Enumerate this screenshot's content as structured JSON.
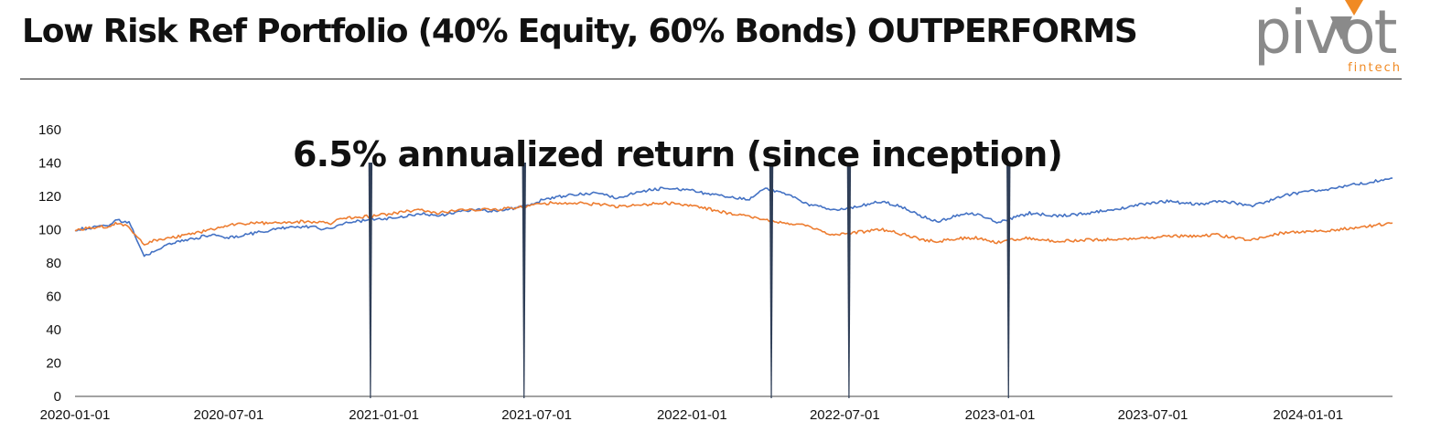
{
  "header": {
    "title": "Low Risk Ref Portfolio (40% Equity, 60% Bonds) OUTPERFORMS",
    "logo_text": "pivot",
    "logo_subtext": "fintech"
  },
  "colors": {
    "blue": "#4472C4",
    "orange": "#ED7D31",
    "marker": "#2F3E57",
    "logo_gray": "#8a8a8a",
    "logo_orange": "#F08A24"
  },
  "chart_data": {
    "type": "line",
    "title": "",
    "annotation": "6.5% annualized return (since inception)",
    "xlabel": "",
    "ylabel": "",
    "ylim": [
      0,
      160
    ],
    "yticks": [
      0,
      20,
      40,
      60,
      80,
      100,
      120,
      140,
      160
    ],
    "x_range": [
      "2020-01-01",
      "2024-04-10"
    ],
    "x_ticks": [
      "2020-01-01",
      "2020-07-01",
      "2021-01-01",
      "2021-07-01",
      "2022-01-01",
      "2022-07-01",
      "2023-01-01",
      "2023-07-01",
      "2024-01-01"
    ],
    "grid": false,
    "legend": "none",
    "event_markers": [
      "2020-12-16",
      "2021-06-16",
      "2022-04-05",
      "2022-07-06",
      "2023-01-11"
    ],
    "series": [
      {
        "color": "#4472C4",
        "points": [
          [
            "2020-01-01",
            100
          ],
          [
            "2020-01-20",
            101
          ],
          [
            "2020-02-10",
            103
          ],
          [
            "2020-02-20",
            106
          ],
          [
            "2020-03-05",
            104
          ],
          [
            "2020-03-12",
            97
          ],
          [
            "2020-03-23",
            84
          ],
          [
            "2020-04-01",
            86
          ],
          [
            "2020-04-20",
            91
          ],
          [
            "2020-05-15",
            94
          ],
          [
            "2020-06-10",
            97
          ],
          [
            "2020-07-01",
            95
          ],
          [
            "2020-08-01",
            98
          ],
          [
            "2020-09-01",
            101
          ],
          [
            "2020-10-01",
            102
          ],
          [
            "2020-10-30",
            100
          ],
          [
            "2020-11-15",
            104
          ],
          [
            "2020-12-16",
            106
          ],
          [
            "2021-01-15",
            107
          ],
          [
            "2021-02-15",
            110
          ],
          [
            "2021-03-05",
            108
          ],
          [
            "2021-03-20",
            110
          ],
          [
            "2021-04-15",
            112
          ],
          [
            "2021-05-15",
            111
          ],
          [
            "2021-06-16",
            114
          ],
          [
            "2021-07-15",
            119
          ],
          [
            "2021-08-15",
            121
          ],
          [
            "2021-09-15",
            122
          ],
          [
            "2021-10-05",
            119
          ],
          [
            "2021-11-01",
            123
          ],
          [
            "2021-12-01",
            125
          ],
          [
            "2021-12-28",
            124
          ],
          [
            "2022-01-25",
            121
          ],
          [
            "2022-02-20",
            119
          ],
          [
            "2022-03-10",
            118
          ],
          [
            "2022-03-29",
            125
          ],
          [
            "2022-04-20",
            122
          ],
          [
            "2022-05-20",
            115
          ],
          [
            "2022-06-16",
            112
          ],
          [
            "2022-07-06",
            113
          ],
          [
            "2022-08-15",
            117
          ],
          [
            "2022-09-10",
            113
          ],
          [
            "2022-09-30",
            108
          ],
          [
            "2022-10-20",
            105
          ],
          [
            "2022-11-20",
            110
          ],
          [
            "2022-12-10",
            109
          ],
          [
            "2022-12-28",
            104
          ],
          [
            "2023-01-11",
            106
          ],
          [
            "2023-02-05",
            110
          ],
          [
            "2023-03-10",
            108
          ],
          [
            "2023-04-15",
            110
          ],
          [
            "2023-05-15",
            112
          ],
          [
            "2023-06-15",
            115
          ],
          [
            "2023-07-20",
            117
          ],
          [
            "2023-08-25",
            115
          ],
          [
            "2023-09-15",
            117
          ],
          [
            "2023-10-05",
            116
          ],
          [
            "2023-10-27",
            114
          ],
          [
            "2023-12-01",
            120
          ],
          [
            "2023-12-28",
            123
          ],
          [
            "2024-01-20",
            124
          ],
          [
            "2024-02-20",
            127
          ],
          [
            "2024-03-10",
            128
          ],
          [
            "2024-04-10",
            131
          ]
        ]
      },
      {
        "color": "#ED7D31",
        "points": [
          [
            "2020-01-01",
            100
          ],
          [
            "2020-01-20",
            101
          ],
          [
            "2020-02-10",
            102
          ],
          [
            "2020-02-20",
            104
          ],
          [
            "2020-03-05",
            102
          ],
          [
            "2020-03-12",
            97
          ],
          [
            "2020-03-23",
            91
          ],
          [
            "2020-04-01",
            93
          ],
          [
            "2020-04-20",
            95
          ],
          [
            "2020-05-15",
            97
          ],
          [
            "2020-06-10",
            100
          ],
          [
            "2020-07-01",
            103
          ],
          [
            "2020-08-01",
            104
          ],
          [
            "2020-09-01",
            104
          ],
          [
            "2020-10-01",
            105
          ],
          [
            "2020-10-30",
            104
          ],
          [
            "2020-11-15",
            107
          ],
          [
            "2020-12-16",
            108
          ],
          [
            "2021-01-15",
            110
          ],
          [
            "2021-02-15",
            112
          ],
          [
            "2021-03-05",
            110
          ],
          [
            "2021-03-20",
            111
          ],
          [
            "2021-04-15",
            112
          ],
          [
            "2021-05-15",
            112
          ],
          [
            "2021-06-16",
            114
          ],
          [
            "2021-07-15",
            116
          ],
          [
            "2021-08-15",
            116
          ],
          [
            "2021-09-15",
            115
          ],
          [
            "2021-10-05",
            114
          ],
          [
            "2021-11-01",
            115
          ],
          [
            "2021-12-01",
            116
          ],
          [
            "2021-12-28",
            115
          ],
          [
            "2022-01-25",
            112
          ],
          [
            "2022-02-20",
            109
          ],
          [
            "2022-03-10",
            108
          ],
          [
            "2022-03-29",
            106
          ],
          [
            "2022-04-20",
            104
          ],
          [
            "2022-05-20",
            102
          ],
          [
            "2022-06-16",
            97
          ],
          [
            "2022-07-06",
            98
          ],
          [
            "2022-08-15",
            100
          ],
          [
            "2022-09-10",
            97
          ],
          [
            "2022-09-30",
            94
          ],
          [
            "2022-10-20",
            93
          ],
          [
            "2022-11-20",
            95
          ],
          [
            "2022-12-10",
            95
          ],
          [
            "2022-12-28",
            92
          ],
          [
            "2023-01-11",
            94
          ],
          [
            "2023-02-05",
            95
          ],
          [
            "2023-03-10",
            93
          ],
          [
            "2023-04-15",
            94
          ],
          [
            "2023-05-15",
            94
          ],
          [
            "2023-06-15",
            95
          ],
          [
            "2023-07-20",
            96
          ],
          [
            "2023-08-25",
            96
          ],
          [
            "2023-09-15",
            97
          ],
          [
            "2023-10-05",
            95
          ],
          [
            "2023-10-27",
            94
          ],
          [
            "2023-12-01",
            98
          ],
          [
            "2023-12-28",
            99
          ],
          [
            "2024-01-20",
            99
          ],
          [
            "2024-02-20",
            101
          ],
          [
            "2024-03-10",
            102
          ],
          [
            "2024-04-10",
            104
          ]
        ]
      }
    ]
  }
}
